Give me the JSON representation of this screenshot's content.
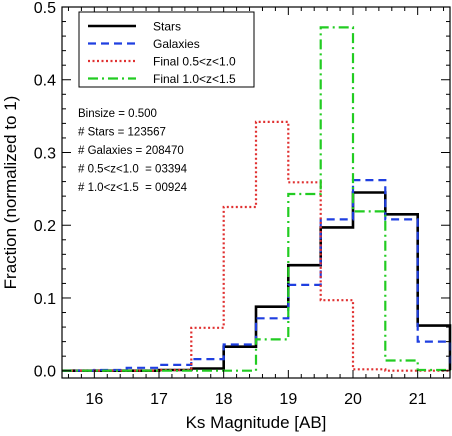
{
  "chart_data": {
    "type": "line",
    "xlabel": "Ks Magnitude [AB]",
    "ylabel": "Fraction (normalized to 1)",
    "xlim": [
      15.5,
      21.5
    ],
    "ylim": [
      -0.01,
      0.5
    ],
    "x_ticks": [
      16,
      17,
      18,
      19,
      20,
      21
    ],
    "y_ticks": [
      0.0,
      0.1,
      0.2,
      0.3,
      0.4,
      0.5
    ],
    "x_tick_labels": [
      "16",
      "17",
      "18",
      "19",
      "20",
      "21"
    ],
    "y_tick_labels": [
      "0.0",
      "0.1",
      "0.2",
      "0.3",
      "0.4",
      "0.5"
    ],
    "grid": false,
    "legend_position": "top-left",
    "bin_edges": [
      15.5,
      16.0,
      16.5,
      17.0,
      17.5,
      18.0,
      18.5,
      19.0,
      19.5,
      20.0,
      20.5,
      21.0,
      21.5
    ],
    "series": [
      {
        "name": "Stars",
        "color": "#000000",
        "style": "solid",
        "values": [
          0.0,
          0.0,
          0.0,
          0.001,
          0.003,
          0.033,
          0.088,
          0.145,
          0.197,
          0.245,
          0.215,
          0.062,
          0.001
        ]
      },
      {
        "name": "Galaxies",
        "color": "#1f3fe0",
        "style": "dashed",
        "values": [
          0.0,
          0.001,
          0.004,
          0.008,
          0.016,
          0.036,
          0.072,
          0.118,
          0.208,
          0.262,
          0.208,
          0.04,
          0.006
        ]
      },
      {
        "name": "Final 0.5<z<1.0",
        "color": "#e03030",
        "style": "dotted",
        "values": [
          0.0,
          0.0,
          0.0,
          0.001,
          0.059,
          0.225,
          0.342,
          0.259,
          0.097,
          0.002,
          0.0,
          0.0,
          0.0
        ]
      },
      {
        "name": "Final 1.0<z<1.5",
        "color": "#22cc22",
        "style": "dashdot",
        "values": [
          0.0,
          0.0,
          0.0,
          0.0,
          0.0,
          0.0,
          0.043,
          0.243,
          0.472,
          0.219,
          0.014,
          0.001,
          0.0
        ]
      }
    ],
    "annotations": [
      "Binsize = 0.500",
      "# Stars = 123567",
      "# Galaxies = 208470",
      "# 0.5<z<1.0  = 03394",
      "# 1.0<z<1.5  = 00924"
    ]
  }
}
